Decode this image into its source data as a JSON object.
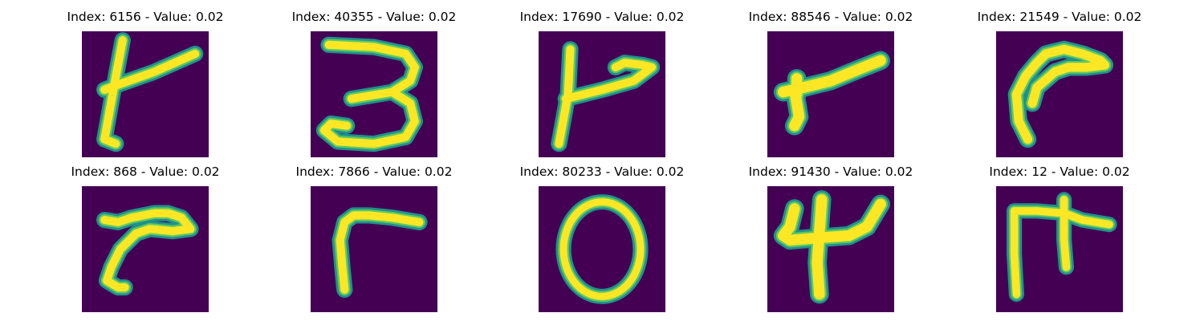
{
  "figure": {
    "background": "#ffffff",
    "colormap": "viridis",
    "image_background_color": "#440154",
    "stroke_edge_color": "#21918c",
    "stroke_mid_color": "#5ec962",
    "stroke_core_color": "#fde725"
  },
  "panels": [
    {
      "title": "Index: 6156 - Value: 0.02",
      "digit_shape": "handwritten stroke resembling a rotated 't' / 'r'"
    },
    {
      "title": "Index: 40355 - Value: 0.02",
      "digit_shape": "handwritten 3"
    },
    {
      "title": "Index: 17690 - Value: 0.02",
      "digit_shape": "handwritten stroke resembling a rotated 'P' / '4'"
    },
    {
      "title": "Index: 88546 - Value: 0.02",
      "digit_shape": "handwritten stroke resembling a rotated 'r'"
    },
    {
      "title": "Index: 21549 - Value: 0.02",
      "digit_shape": "handwritten curved stroke resembling a rotated 'r'"
    },
    {
      "title": "Index: 868 - Value: 0.02",
      "digit_shape": "handwritten stroke resembling a rotated 'r'"
    },
    {
      "title": "Index: 7866 - Value: 0.02",
      "digit_shape": "handwritten stroke resembling a rotated 'r'"
    },
    {
      "title": "Index: 80233 - Value: 0.02",
      "digit_shape": "handwritten 0"
    },
    {
      "title": "Index: 91430 - Value: 0.02",
      "digit_shape": "handwritten 4"
    },
    {
      "title": "Index: 12 - Value: 0.02",
      "digit_shape": "handwritten stroke resembling a rotated 'm' / 'F'"
    }
  ]
}
